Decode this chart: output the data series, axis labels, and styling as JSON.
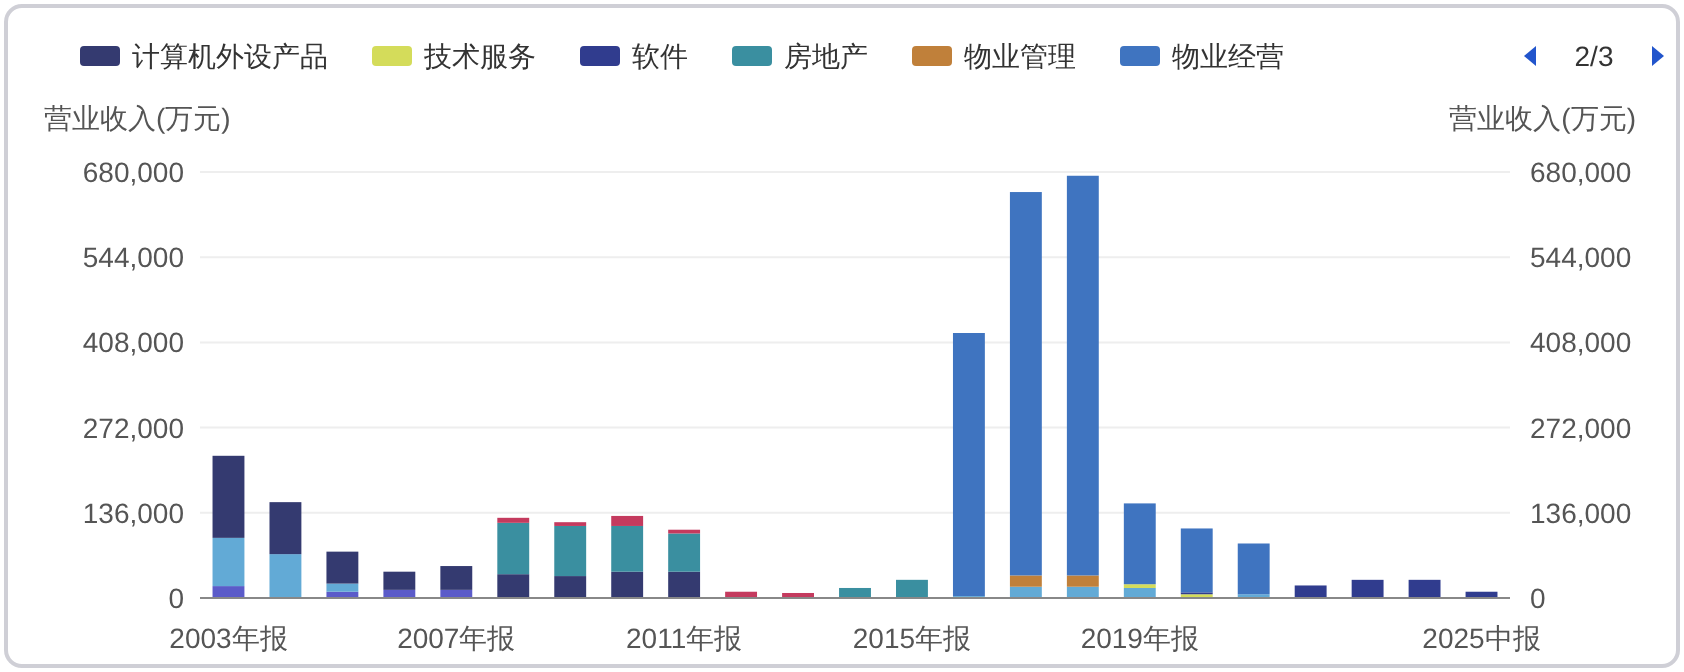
{
  "chart_data": {
    "type": "bar",
    "stacked": true,
    "categories": [
      "2003年报",
      null,
      null,
      null,
      "2007年报",
      null,
      null,
      null,
      "2011年报",
      null,
      null,
      null,
      "2015年报",
      null,
      null,
      null,
      "2019年报",
      null,
      null,
      null,
      null,
      null,
      "2025中报"
    ],
    "ylabel": "营业收入(万元)",
    "y2label": "营业收入(万元)",
    "ylim": [
      0,
      680000
    ],
    "yticks": [
      0,
      {
        "value": 136000,
        "label": "136,000"
      },
      {
        "value": 272000,
        "label": "272,000"
      },
      {
        "value": 408000,
        "label": "408,000"
      },
      {
        "value": 544000,
        "label": "544,000"
      },
      {
        "value": 680000,
        "label": "680,000"
      }
    ],
    "y2lim": [
      0,
      680000
    ],
    "y2ticks": [
      0,
      {
        "value": 136000,
        "label": "136,000"
      },
      {
        "value": 272000,
        "label": "272,000"
      },
      {
        "value": 408000,
        "label": "408,000"
      },
      {
        "value": 544000,
        "label": "544,000"
      },
      {
        "value": 680000,
        "label": "680,000"
      }
    ],
    "grid": "y",
    "legend": "top",
    "annotations": [
      "2/3"
    ],
    "series": [
      {
        "color": "#5b5bc9",
        "values": [
          19000,
          null,
          10000,
          13000,
          13000,
          null,
          null,
          null,
          null,
          null,
          null,
          null,
          null,
          null,
          null,
          null,
          null,
          null,
          null,
          null,
          null,
          null,
          null
        ]
      },
      {
        "color": "#62aad6",
        "values": [
          77000,
          70000,
          13000,
          null,
          null,
          null,
          null,
          null,
          null,
          null,
          null,
          null,
          null,
          3000,
          18000,
          18000,
          16000,
          null,
          6000,
          null,
          null,
          null,
          null
        ]
      },
      {
        "name": "计算机外设产品",
        "color": "#343a70",
        "values": [
          131000,
          83000,
          51000,
          29000,
          38000,
          38000,
          35000,
          42000,
          42000,
          null,
          null,
          null,
          null,
          null,
          null,
          null,
          null,
          null,
          null,
          null,
          null,
          null,
          null
        ]
      },
      {
        "name": "技术服务",
        "color": "#d4dc5a",
        "values": [
          null,
          null,
          null,
          null,
          null,
          null,
          null,
          null,
          null,
          null,
          null,
          null,
          null,
          null,
          null,
          null,
          6000,
          6000,
          null,
          null,
          null,
          null,
          null
        ]
      },
      {
        "name": "软件",
        "color": "#303c8e",
        "values": [
          null,
          null,
          null,
          null,
          null,
          null,
          null,
          null,
          null,
          null,
          null,
          null,
          null,
          null,
          null,
          null,
          null,
          3000,
          null,
          20000,
          29000,
          29000,
          10000
        ]
      },
      {
        "name": "房地产",
        "color": "#3a8fa0",
        "values": [
          null,
          null,
          null,
          null,
          null,
          82000,
          80000,
          73000,
          61000,
          null,
          null,
          16000,
          29000,
          null,
          null,
          null,
          null,
          null,
          null,
          null,
          null,
          null,
          null
        ]
      },
      {
        "name": "物业管理",
        "color": "#c0803a",
        "values": [
          null,
          null,
          null,
          null,
          null,
          null,
          null,
          null,
          null,
          null,
          null,
          null,
          null,
          null,
          18000,
          18000,
          null,
          null,
          null,
          null,
          null,
          null,
          null
        ]
      },
      {
        "name": "物业经营",
        "color": "#3f74c0",
        "values": [
          null,
          null,
          null,
          null,
          null,
          null,
          null,
          null,
          null,
          null,
          null,
          null,
          null,
          420000,
          612000,
          638000,
          129000,
          102000,
          81000,
          null,
          null,
          null,
          null
        ]
      },
      {
        "color": "#c43a5e",
        "values": [
          null,
          null,
          null,
          null,
          null,
          8000,
          6000,
          16000,
          6000,
          10000,
          8000,
          null,
          null,
          null,
          null,
          null,
          null,
          null,
          null,
          null,
          null,
          null,
          null
        ]
      }
    ]
  }
}
